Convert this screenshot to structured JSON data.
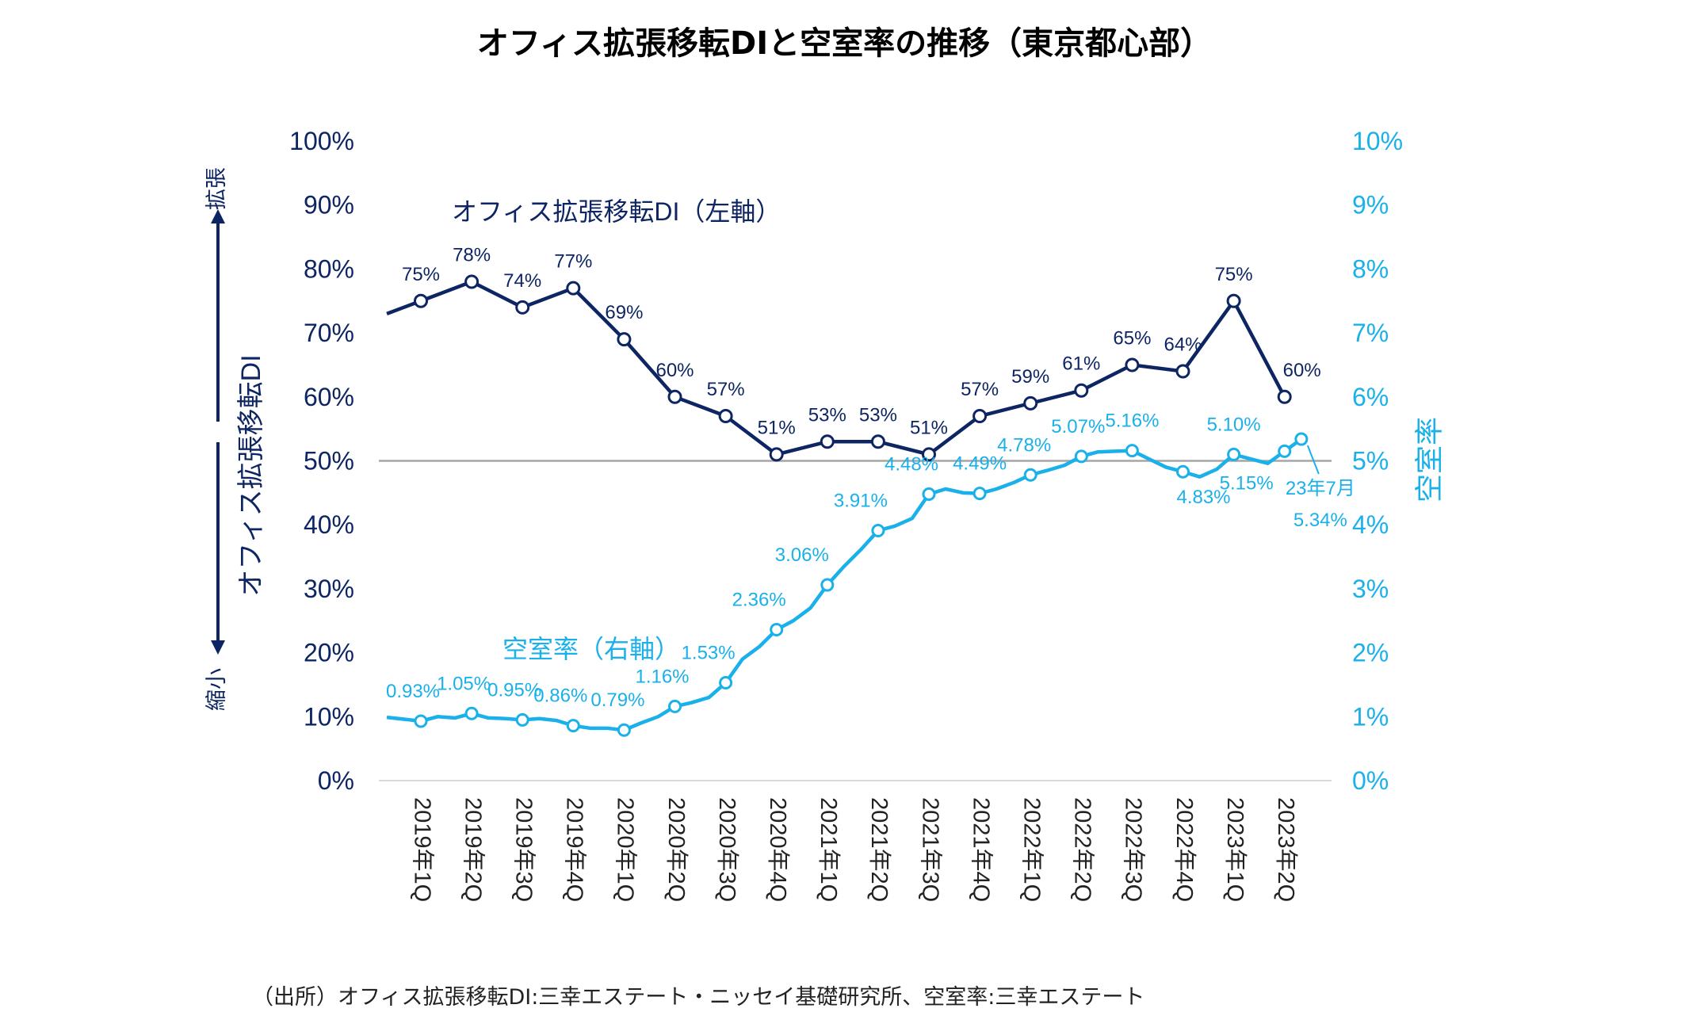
{
  "chart_data": {
    "type": "line",
    "title": "オフィス拡張移転DIと空室率の推移（東京都心部）",
    "source": "（出所）オフィス拡張移転DI:三幸エステート・ニッセイ基礎研究所、空室率:三幸エステート",
    "x_categories": [
      "2019年1Q",
      "2019年2Q",
      "2019年3Q",
      "2019年4Q",
      "2020年1Q",
      "2020年2Q",
      "2020年3Q",
      "2020年4Q",
      "2021年1Q",
      "2021年2Q",
      "2021年3Q",
      "2021年4Q",
      "2022年1Q",
      "2022年2Q",
      "2022年3Q",
      "2022年4Q",
      "2023年1Q",
      "2023年2Q"
    ],
    "left_axis": {
      "title": "オフィス拡張移転DI",
      "ylim": [
        0,
        100
      ],
      "ticks": [
        "0%",
        "10%",
        "20%",
        "30%",
        "40%",
        "50%",
        "60%",
        "70%",
        "80%",
        "90%",
        "100%"
      ],
      "arrow_up_label": "拡張",
      "arrow_down_label": "縮小"
    },
    "right_axis": {
      "title": "空室率",
      "ylim": [
        0,
        10
      ],
      "ticks": [
        "0%",
        "1%",
        "2%",
        "3%",
        "4%",
        "5%",
        "6%",
        "7%",
        "8%",
        "9%",
        "10%"
      ]
    },
    "reference_line": 50,
    "series": [
      {
        "name": "オフィス拡張移転DI（左軸）",
        "axis": "left",
        "color": "#0d2563",
        "leading_value": 73,
        "values": [
          75,
          78,
          74,
          77,
          69,
          60,
          57,
          51,
          53,
          53,
          51,
          57,
          59,
          61,
          65,
          64,
          75,
          60
        ],
        "labels": [
          "75%",
          "78%",
          "74%",
          "77%",
          "69%",
          "60%",
          "57%",
          "51%",
          "53%",
          "53%",
          "51%",
          "57%",
          "59%",
          "61%",
          "65%",
          "64%",
          "75%",
          "60%"
        ]
      },
      {
        "name": "空室率（右軸）",
        "axis": "right",
        "color": "#1ab0ea",
        "marked": [
          {
            "x": 0,
            "value": 0.93,
            "label": "0.93%"
          },
          {
            "x": 1,
            "value": 1.05,
            "label": "1.05%"
          },
          {
            "x": 2,
            "value": 0.95,
            "label": "0.95%"
          },
          {
            "x": 3,
            "value": 0.86,
            "label": "0.86%"
          },
          {
            "x": 4,
            "value": 0.79,
            "label": "0.79%"
          },
          {
            "x": 5,
            "value": 1.16,
            "label": "1.16%"
          },
          {
            "x": 6,
            "value": 1.53,
            "label": "1.53%"
          },
          {
            "x": 7,
            "value": 2.36,
            "label": "2.36%"
          },
          {
            "x": 8,
            "value": 3.06,
            "label": "3.06%"
          },
          {
            "x": 9,
            "value": 3.91,
            "label": "3.91%"
          },
          {
            "x": 10,
            "value": 4.48,
            "label": "4.48%"
          },
          {
            "x": 11,
            "value": 4.49,
            "label": "4.49%"
          },
          {
            "x": 12,
            "value": 4.78,
            "label": "4.78%"
          },
          {
            "x": 13,
            "value": 5.07,
            "label": "5.07%"
          },
          {
            "x": 14,
            "value": 5.16,
            "label": "5.16%"
          },
          {
            "x": 15,
            "value": 4.83,
            "label": "4.83%"
          },
          {
            "x": 16,
            "value": 5.1,
            "label": "5.10%"
          },
          {
            "x": 17,
            "value": 5.15,
            "label": "5.15%"
          },
          {
            "x": 17.33,
            "value": 5.34,
            "label": "5.34%",
            "note": "23年7月"
          }
        ],
        "monthly_path": [
          [
            -0.67,
            0.99
          ],
          [
            -0.33,
            0.96
          ],
          [
            0,
            0.93
          ],
          [
            0.33,
            1.0
          ],
          [
            0.67,
            0.98
          ],
          [
            1,
            1.05
          ],
          [
            1.33,
            0.98
          ],
          [
            1.67,
            0.97
          ],
          [
            2,
            0.95
          ],
          [
            2.33,
            0.97
          ],
          [
            2.67,
            0.94
          ],
          [
            3,
            0.86
          ],
          [
            3.33,
            0.82
          ],
          [
            3.67,
            0.82
          ],
          [
            4,
            0.79
          ],
          [
            4.33,
            0.9
          ],
          [
            4.67,
            1.0
          ],
          [
            5,
            1.16
          ],
          [
            5.33,
            1.22
          ],
          [
            5.67,
            1.3
          ],
          [
            6,
            1.53
          ],
          [
            6.33,
            1.9
          ],
          [
            6.67,
            2.1
          ],
          [
            7,
            2.36
          ],
          [
            7.33,
            2.5
          ],
          [
            7.67,
            2.7
          ],
          [
            8,
            3.06
          ],
          [
            8.33,
            3.35
          ],
          [
            8.67,
            3.62
          ],
          [
            9,
            3.91
          ],
          [
            9.33,
            3.98
          ],
          [
            9.67,
            4.1
          ],
          [
            10,
            4.48
          ],
          [
            10.33,
            4.56
          ],
          [
            10.67,
            4.5
          ],
          [
            11,
            4.49
          ],
          [
            11.33,
            4.56
          ],
          [
            11.67,
            4.66
          ],
          [
            12,
            4.78
          ],
          [
            12.33,
            4.85
          ],
          [
            12.67,
            4.93
          ],
          [
            13,
            5.07
          ],
          [
            13.33,
            5.14
          ],
          [
            13.67,
            5.15
          ],
          [
            14,
            5.16
          ],
          [
            14.33,
            5.03
          ],
          [
            14.67,
            4.9
          ],
          [
            15,
            4.83
          ],
          [
            15.33,
            4.75
          ],
          [
            15.67,
            4.87
          ],
          [
            16,
            5.1
          ],
          [
            16.33,
            5.03
          ],
          [
            16.67,
            4.96
          ],
          [
            17,
            5.15
          ],
          [
            17.33,
            5.34
          ]
        ]
      }
    ],
    "annotations": {
      "di_series_label": "オフィス拡張移転DI（左軸）",
      "vacancy_series_label": "空室率（右軸）",
      "july_label": "23年7月"
    },
    "grid": false
  },
  "colors": {
    "di": "#0d2563",
    "vacancy": "#1ab0ea",
    "reference": "#a6a6a6",
    "axis_text_left": "#0d2563",
    "axis_text_right": "#1ab0ea"
  }
}
